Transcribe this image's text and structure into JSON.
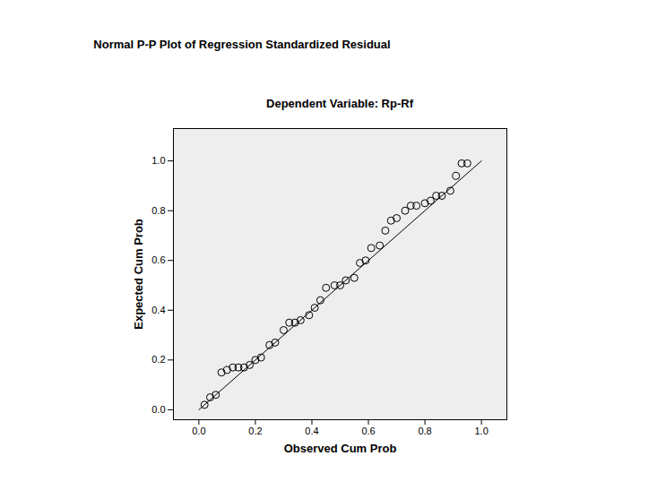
{
  "chart_data": {
    "type": "scatter",
    "title": "Normal P-P Plot of Regression Standardized Residual",
    "subtitle": "Dependent Variable: Rp-Rf",
    "x_label": "Observed Cum Prob",
    "y_label": "Expected Cum Prob",
    "x": [
      0.02,
      0.04,
      0.06,
      0.08,
      0.1,
      0.12,
      0.14,
      0.16,
      0.18,
      0.2,
      0.22,
      0.25,
      0.27,
      0.3,
      0.32,
      0.34,
      0.36,
      0.39,
      0.41,
      0.43,
      0.45,
      0.48,
      0.5,
      0.52,
      0.55,
      0.57,
      0.59,
      0.61,
      0.64,
      0.66,
      0.68,
      0.7,
      0.73,
      0.75,
      0.77,
      0.8,
      0.82,
      0.84,
      0.86,
      0.89,
      0.91,
      0.93,
      0.95
    ],
    "values": [
      0.02,
      0.05,
      0.06,
      0.15,
      0.16,
      0.17,
      0.17,
      0.17,
      0.18,
      0.2,
      0.21,
      0.26,
      0.27,
      0.32,
      0.35,
      0.35,
      0.36,
      0.38,
      0.41,
      0.44,
      0.49,
      0.5,
      0.5,
      0.52,
      0.53,
      0.59,
      0.6,
      0.65,
      0.66,
      0.72,
      0.76,
      0.77,
      0.8,
      0.82,
      0.82,
      0.83,
      0.84,
      0.86,
      0.86,
      0.88,
      0.94,
      0.99,
      0.99
    ],
    "color": "#000000",
    "marker": "circle_open",
    "reference_line": {
      "x": [
        0,
        1
      ],
      "y": [
        0,
        1
      ]
    },
    "xlim": [
      -0.09,
      1.09
    ],
    "ylim": [
      -0.04,
      1.13
    ],
    "xticks": [
      {
        "value": 0,
        "label": "0.0"
      },
      {
        "value": 0.2,
        "label": "0.2"
      },
      {
        "value": 0.4,
        "label": "0.4"
      },
      {
        "value": 0.6,
        "label": "0.6"
      },
      {
        "value": 0.8,
        "label": "0.8"
      },
      {
        "value": 1,
        "label": "1.0"
      }
    ],
    "yticks": [
      {
        "value": 0,
        "label": "0.0"
      },
      {
        "value": 0.2,
        "label": "0.2"
      },
      {
        "value": 0.4,
        "label": "0.4"
      },
      {
        "value": 0.6,
        "label": "0.6"
      },
      {
        "value": 0.8,
        "label": "0.8"
      },
      {
        "value": 1,
        "label": "1.0"
      }
    ]
  }
}
